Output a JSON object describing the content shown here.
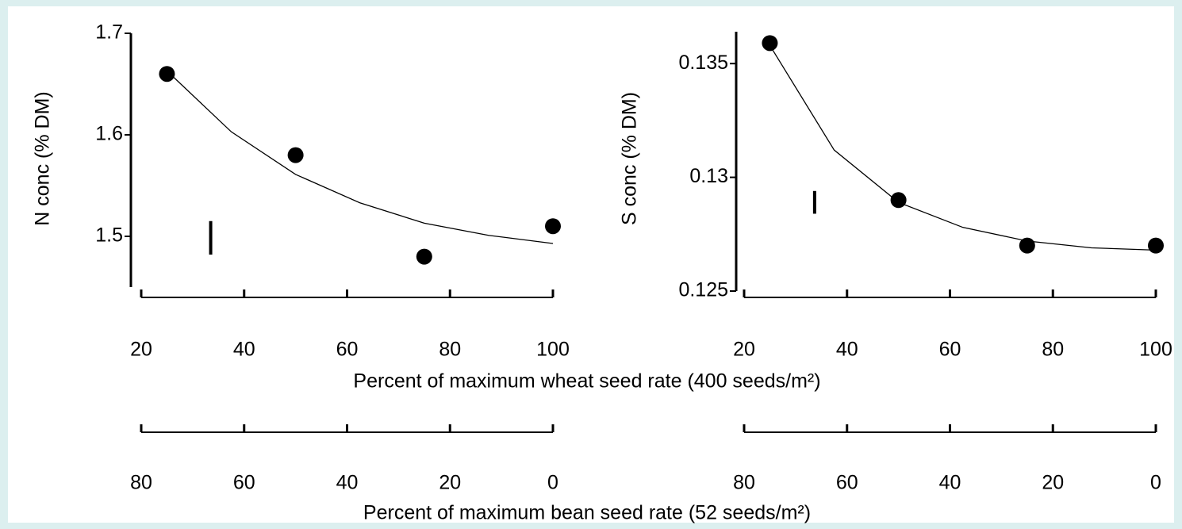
{
  "chart_data": [
    {
      "type": "scatter",
      "ylabel": "N conc (% DM)",
      "color": "#000000",
      "x": [
        25,
        50,
        75,
        100
      ],
      "values": [
        1.66,
        1.58,
        1.48,
        1.51
      ],
      "fit": {
        "x": [
          25,
          37.5,
          50,
          62.5,
          75,
          87.5,
          100
        ],
        "values": [
          1.663,
          1.603,
          1.561,
          1.533,
          1.513,
          1.501,
          1.493
        ]
      },
      "error_bar": {
        "x": 33.5,
        "y": 1.4985,
        "error": 0.0165
      },
      "xlim": [
        20,
        100
      ],
      "xticks": [
        20,
        40,
        60,
        80,
        100
      ],
      "x2lim": [
        80,
        0
      ],
      "x2ticks": [
        80,
        60,
        40,
        20,
        0
      ],
      "ylim": [
        1.45,
        1.7
      ],
      "yticks": [
        1.5,
        1.6,
        1.7
      ]
    },
    {
      "type": "scatter",
      "ylabel": "S conc (% DM)",
      "color": "#000000",
      "x": [
        25,
        50,
        75,
        100
      ],
      "values": [
        0.1359,
        0.129,
        0.127,
        0.127
      ],
      "fit": {
        "x": [
          25,
          37.5,
          50,
          62.5,
          75,
          87.5,
          100
        ],
        "values": [
          0.1358,
          0.1312,
          0.1289,
          0.1278,
          0.1272,
          0.1269,
          0.1268
        ]
      },
      "error_bar": {
        "x": 33.7,
        "y": 0.1289,
        "error": 0.0005
      },
      "xlim": [
        20,
        100
      ],
      "xticks": [
        20,
        40,
        60,
        80,
        100
      ],
      "x2lim": [
        80,
        0
      ],
      "x2ticks": [
        80,
        60,
        40,
        20,
        0
      ],
      "ylim": [
        0.125,
        0.1364
      ],
      "yticks": [
        0.125,
        0.13,
        0.135
      ]
    }
  ],
  "xlabel": "Percent of maximum wheat seed rate (400 seeds/m²)",
  "x2label": "Percent of maximum bean seed rate (52 seeds/m²)"
}
